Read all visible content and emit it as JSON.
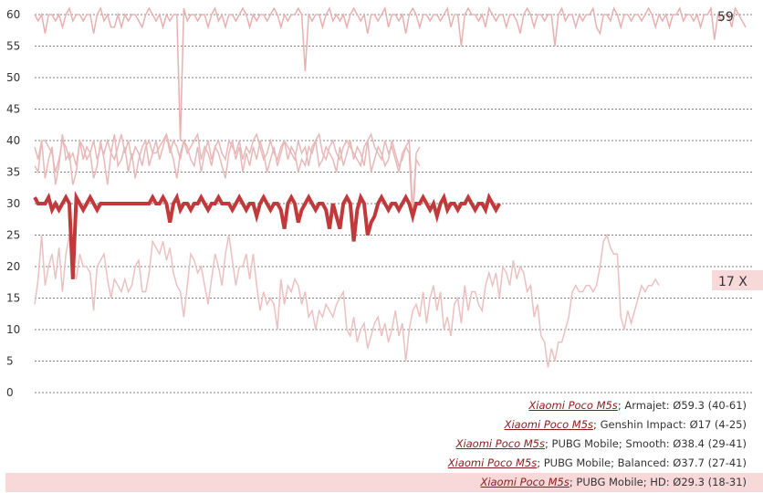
{
  "chart_data": {
    "type": "line",
    "ylim": [
      0,
      60
    ],
    "yticks": [
      0,
      5,
      10,
      15,
      20,
      25,
      30,
      35,
      40,
      45,
      50,
      55,
      60
    ],
    "grid": true,
    "legend_position": "bottom-right",
    "edge_labels": {
      "top": "59",
      "middle": "17 X"
    },
    "series": [
      {
        "name": "Armajet",
        "device": "Xiaomi Poco M5s",
        "summary": "Ø59.3 (40-61)",
        "color": "#e8b0b0",
        "width": 1.5,
        "values": [
          60,
          59,
          60,
          57,
          60,
          60,
          59,
          60,
          58,
          60,
          61,
          59,
          60,
          60,
          59,
          60,
          60,
          57,
          60,
          61,
          59,
          60,
          58,
          58,
          60,
          58,
          60,
          59,
          60,
          60,
          59,
          58,
          60,
          61,
          60,
          59,
          60,
          58,
          60,
          59,
          60,
          60,
          40,
          61,
          59,
          60,
          60,
          59,
          60,
          60,
          58,
          60,
          61,
          59,
          60,
          58,
          60,
          60,
          59,
          60,
          61,
          60,
          58,
          60,
          59,
          60,
          60,
          59,
          60,
          61,
          60,
          58,
          60,
          59,
          60,
          60,
          61,
          60,
          51,
          60,
          59,
          60,
          60,
          58,
          60,
          61,
          59,
          60,
          59,
          60,
          58,
          60,
          61,
          60,
          59,
          60,
          57,
          60,
          60,
          59,
          60,
          61,
          58,
          60,
          60,
          59,
          60,
          57,
          60,
          61,
          60,
          58,
          60,
          60,
          59,
          60,
          60,
          59,
          60,
          61,
          58,
          60,
          60,
          55,
          60,
          61,
          60,
          60,
          59,
          60,
          58,
          61,
          60,
          59,
          60,
          60,
          58,
          60,
          60,
          59,
          57,
          60,
          61,
          60,
          58,
          60,
          60,
          59,
          60,
          60,
          55,
          60,
          61,
          59,
          60,
          60,
          58,
          60,
          59,
          60,
          60,
          61,
          58,
          57,
          60,
          60,
          59,
          61,
          60,
          58,
          60,
          60,
          59,
          60,
          60,
          59,
          60,
          61,
          60,
          58,
          60,
          59,
          60,
          58,
          60,
          60,
          61,
          59,
          60,
          60,
          59,
          60,
          58,
          60,
          60,
          61,
          56,
          60,
          59,
          60,
          60,
          58,
          61,
          60,
          59,
          58
        ]
      },
      {
        "name": "Genshin Impact",
        "device": "Xiaomi Poco M5s",
        "summary": "Ø17 (4-25)",
        "color": "#ebc0c0",
        "width": 1.5,
        "values": [
          14,
          18,
          25,
          17,
          20,
          22,
          18,
          23,
          16,
          22,
          25,
          20,
          18,
          22,
          20,
          20,
          19,
          13,
          20,
          21,
          22,
          18,
          15,
          18,
          17,
          16,
          18,
          16,
          17,
          20,
          21,
          16,
          16,
          19,
          24,
          23,
          22,
          24,
          21,
          23,
          19,
          17,
          16,
          12,
          17,
          22,
          21,
          19,
          20,
          17,
          14,
          18,
          22,
          20,
          17,
          22,
          25,
          21,
          17,
          20,
          20,
          22,
          18,
          22,
          17,
          13,
          16,
          14,
          15,
          14,
          10,
          18,
          14,
          17,
          16,
          18,
          17,
          14,
          16,
          12,
          13,
          10,
          13,
          12,
          14,
          13,
          12,
          14,
          15,
          16,
          10,
          9,
          12,
          8,
          10,
          11,
          7,
          9,
          11,
          12,
          9,
          11,
          8,
          10,
          13,
          9,
          11,
          5,
          10,
          13,
          14,
          12,
          16,
          11,
          15,
          17,
          13,
          16,
          10,
          12,
          9,
          14,
          15,
          11,
          17,
          13,
          16,
          16,
          14,
          13,
          17,
          19,
          17,
          19,
          15,
          20,
          19,
          17,
          21,
          18,
          20,
          19,
          16,
          17,
          12,
          14,
          9,
          8,
          4,
          7,
          5,
          8,
          8,
          10,
          12,
          16,
          17,
          16,
          16,
          17,
          17,
          16,
          17,
          20,
          24,
          25,
          23,
          22,
          22,
          12,
          10,
          13,
          11,
          13,
          15,
          17,
          16,
          17,
          17,
          18,
          17
        ]
      },
      {
        "name": "PUBG Mobile; Smooth",
        "device": "Xiaomi Poco M5s",
        "summary": "Ø38.4 (29-41)",
        "color": "#e8b8b8",
        "width": 1.5,
        "values": [
          39,
          37,
          40,
          40,
          39,
          38,
          35,
          37,
          40,
          39,
          37,
          38,
          36,
          40,
          39,
          37,
          38,
          40,
          37,
          39,
          38,
          40,
          38,
          37,
          39,
          41,
          38,
          40,
          37,
          39,
          38,
          36,
          39,
          40,
          38,
          40,
          37,
          39,
          41,
          38,
          40,
          39,
          37,
          40,
          38,
          39,
          40,
          41,
          37,
          39,
          38,
          36,
          39,
          40,
          38,
          37,
          40,
          39,
          38,
          40,
          37,
          39,
          38,
          40,
          41,
          39,
          37,
          38,
          40,
          38,
          37,
          39,
          40,
          39,
          38,
          37,
          40,
          38,
          39,
          36,
          39,
          40,
          41,
          38,
          37,
          39,
          40,
          38,
          37,
          39,
          40,
          39,
          38,
          37,
          36,
          39,
          40,
          41,
          39,
          38,
          37,
          40,
          38,
          39,
          37,
          35,
          38,
          39,
          40,
          29,
          38,
          39
        ]
      },
      {
        "name": "PUBG Mobile; Balanced",
        "device": "Xiaomi Poco M5s",
        "summary": "Ø37.7 (27-41)",
        "color": "#e8b8b8",
        "width": 1.5,
        "values": [
          36,
          35,
          40,
          34,
          37,
          39,
          33,
          36,
          41,
          37,
          38,
          33,
          35,
          40,
          37,
          39,
          38,
          34,
          36,
          40,
          37,
          33,
          38,
          41,
          36,
          37,
          39,
          35,
          38,
          34,
          37,
          39,
          40,
          36,
          38,
          38,
          39,
          40,
          41,
          39,
          37,
          34,
          38,
          40,
          39,
          37,
          36,
          39,
          35,
          38,
          40,
          37,
          39,
          38,
          36,
          34,
          38,
          40,
          37,
          39,
          35,
          38,
          36,
          39,
          37,
          40,
          38,
          35,
          37,
          39,
          36,
          38,
          40,
          37,
          39,
          38,
          35,
          37,
          36,
          39,
          38,
          40,
          36,
          37,
          39,
          38,
          37,
          35,
          39,
          36,
          38,
          40,
          37,
          39,
          38,
          36,
          40,
          35,
          37,
          39,
          38,
          36,
          37,
          40,
          38,
          36,
          37,
          39,
          38,
          27,
          37,
          36
        ]
      },
      {
        "name": "PUBG Mobile; HD",
        "device": "Xiaomi Poco M5s",
        "summary": "Ø29.3 (18-31)",
        "color": "#c0393b",
        "width": 4,
        "values": [
          31,
          30,
          30,
          30,
          31,
          29,
          30,
          29,
          30,
          31,
          30,
          18,
          31,
          30,
          29,
          30,
          31,
          30,
          29,
          30,
          30,
          30,
          30,
          30,
          30,
          30,
          30,
          30,
          30,
          30,
          30,
          30,
          30,
          30,
          31,
          30,
          30,
          31,
          30,
          27,
          30,
          31,
          29,
          30,
          30,
          29,
          30,
          30,
          31,
          30,
          29,
          30,
          30,
          31,
          30,
          30,
          30,
          29,
          30,
          31,
          30,
          29,
          30,
          30,
          28,
          30,
          31,
          30,
          29,
          30,
          30,
          29,
          26,
          30,
          31,
          30,
          27,
          29,
          30,
          31,
          30,
          29,
          30,
          30,
          29,
          26,
          30,
          28,
          26,
          30,
          31,
          30,
          24,
          29,
          31,
          30,
          25,
          27,
          28,
          30,
          31,
          30,
          29,
          30,
          30,
          29,
          30,
          31,
          30,
          28,
          30,
          30,
          31,
          30,
          29,
          30,
          28,
          30,
          31,
          29,
          30,
          30,
          29,
          30,
          30,
          31,
          30,
          29,
          30,
          30,
          29,
          31,
          30,
          29,
          30
        ]
      }
    ]
  },
  "legend": {
    "items": [
      {
        "device": "Xiaomi Poco M5s",
        "detail": "; Armajet: Ø59.3 (40-61)"
      },
      {
        "device": "Xiaomi Poco M5s",
        "detail": "; Genshin Impact: Ø17 (4-25)"
      },
      {
        "device": "Xiaomi Poco M5s",
        "detail": "; PUBG Mobile; Smooth: Ø38.4 (29-41)"
      },
      {
        "device": "Xiaomi Poco M5s",
        "detail": "; PUBG Mobile; Balanced: Ø37.7 (27-41)"
      },
      {
        "device": "Xiaomi Poco M5s",
        "detail": "; PUBG Mobile; HD: Ø29.3 (18-31)"
      }
    ]
  }
}
